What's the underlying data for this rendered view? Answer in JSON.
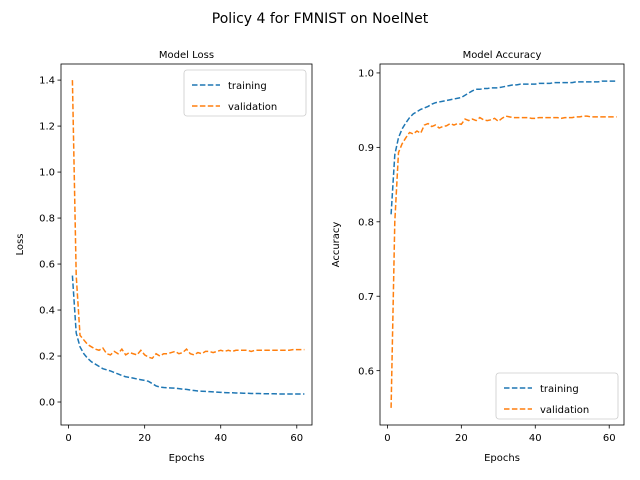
{
  "figure": {
    "suptitle": "Policy 4 for FMNIST on NoelNet"
  },
  "colors": {
    "training": "#1f77b4",
    "validation": "#ff7f0e",
    "axis": "#000000",
    "background": "#ffffff"
  },
  "chart_data": [
    {
      "type": "line",
      "title": "Model Loss",
      "xlabel": "Epochs",
      "ylabel": "Loss",
      "xlim": [
        -2,
        64
      ],
      "ylim": [
        -0.1,
        1.47
      ],
      "xticks": [
        0,
        20,
        40,
        60
      ],
      "xtick_labels": [
        "0",
        "20",
        "40",
        "60"
      ],
      "yticks": [
        0.0,
        0.2,
        0.4,
        0.6,
        0.8,
        1.0,
        1.2,
        1.4
      ],
      "ytick_labels": [
        "0.0",
        "0.2",
        "0.4",
        "0.6",
        "0.8",
        "1.0",
        "1.2",
        "1.4"
      ],
      "grid": false,
      "legend_position": "top-right",
      "series": [
        {
          "name": "training",
          "line_style": "dashed",
          "x": [
            1,
            2,
            3,
            4,
            5,
            6,
            7,
            8,
            9,
            10,
            11,
            12,
            13,
            14,
            15,
            16,
            17,
            18,
            19,
            20,
            21,
            22,
            23,
            24,
            25,
            26,
            27,
            28,
            29,
            30,
            31,
            32,
            33,
            34,
            35,
            36,
            37,
            38,
            39,
            40,
            41,
            42,
            43,
            44,
            45,
            46,
            47,
            48,
            49,
            50,
            51,
            52,
            53,
            54,
            55,
            56,
            57,
            58,
            59,
            60,
            61,
            62
          ],
          "y": [
            0.55,
            0.3,
            0.24,
            0.21,
            0.19,
            0.175,
            0.165,
            0.155,
            0.145,
            0.14,
            0.135,
            0.128,
            0.122,
            0.115,
            0.11,
            0.107,
            0.104,
            0.1,
            0.097,
            0.094,
            0.09,
            0.08,
            0.07,
            0.065,
            0.063,
            0.062,
            0.061,
            0.06,
            0.058,
            0.056,
            0.055,
            0.052,
            0.05,
            0.048,
            0.047,
            0.046,
            0.045,
            0.044,
            0.043,
            0.042,
            0.041,
            0.04,
            0.04,
            0.039,
            0.039,
            0.038,
            0.038,
            0.037,
            0.037,
            0.037,
            0.036,
            0.036,
            0.036,
            0.036,
            0.035,
            0.035,
            0.035,
            0.035,
            0.035,
            0.035,
            0.035,
            0.035
          ]
        },
        {
          "name": "validation",
          "line_style": "dashed",
          "x": [
            1,
            2,
            3,
            4,
            5,
            6,
            7,
            8,
            9,
            10,
            11,
            12,
            13,
            14,
            15,
            16,
            17,
            18,
            19,
            20,
            21,
            22,
            23,
            24,
            25,
            26,
            27,
            28,
            29,
            30,
            31,
            32,
            33,
            34,
            35,
            36,
            37,
            38,
            39,
            40,
            41,
            42,
            43,
            44,
            45,
            46,
            47,
            48,
            49,
            50,
            51,
            52,
            53,
            54,
            55,
            56,
            57,
            58,
            59,
            60,
            61,
            62
          ],
          "y": [
            1.4,
            0.55,
            0.29,
            0.27,
            0.25,
            0.24,
            0.23,
            0.225,
            0.235,
            0.21,
            0.205,
            0.22,
            0.21,
            0.23,
            0.205,
            0.215,
            0.21,
            0.205,
            0.225,
            0.205,
            0.195,
            0.19,
            0.21,
            0.2,
            0.21,
            0.21,
            0.215,
            0.22,
            0.21,
            0.215,
            0.23,
            0.21,
            0.205,
            0.215,
            0.21,
            0.22,
            0.22,
            0.215,
            0.22,
            0.225,
            0.22,
            0.225,
            0.22,
            0.225,
            0.225,
            0.225,
            0.225,
            0.22,
            0.225,
            0.225,
            0.225,
            0.225,
            0.225,
            0.225,
            0.225,
            0.225,
            0.225,
            0.225,
            0.228,
            0.228,
            0.228,
            0.228
          ]
        }
      ]
    },
    {
      "type": "line",
      "title": "Model Accuracy",
      "xlabel": "Epochs",
      "ylabel": "Accuracy",
      "xlim": [
        -2,
        64
      ],
      "ylim": [
        0.527,
        1.012
      ],
      "xticks": [
        0,
        20,
        40,
        60
      ],
      "xtick_labels": [
        "0",
        "20",
        "40",
        "60"
      ],
      "yticks": [
        0.6,
        0.7,
        0.8,
        0.9,
        1.0
      ],
      "ytick_labels": [
        "0.6",
        "0.7",
        "0.8",
        "0.9",
        "1.0"
      ],
      "grid": false,
      "legend_position": "bottom-right",
      "series": [
        {
          "name": "training",
          "line_style": "dashed",
          "x": [
            1,
            2,
            3,
            4,
            5,
            6,
            7,
            8,
            9,
            10,
            11,
            12,
            13,
            14,
            15,
            16,
            17,
            18,
            19,
            20,
            21,
            22,
            23,
            24,
            25,
            26,
            27,
            28,
            29,
            30,
            31,
            32,
            33,
            34,
            35,
            36,
            37,
            38,
            39,
            40,
            41,
            42,
            43,
            44,
            45,
            46,
            47,
            48,
            49,
            50,
            51,
            52,
            53,
            54,
            55,
            56,
            57,
            58,
            59,
            60,
            61,
            62
          ],
          "y": [
            0.81,
            0.89,
            0.913,
            0.925,
            0.933,
            0.94,
            0.945,
            0.948,
            0.951,
            0.953,
            0.955,
            0.958,
            0.96,
            0.961,
            0.962,
            0.963,
            0.964,
            0.965,
            0.966,
            0.967,
            0.97,
            0.973,
            0.976,
            0.978,
            0.978,
            0.979,
            0.979,
            0.98,
            0.98,
            0.98,
            0.981,
            0.982,
            0.983,
            0.984,
            0.984,
            0.985,
            0.985,
            0.985,
            0.985,
            0.985,
            0.986,
            0.986,
            0.986,
            0.986,
            0.987,
            0.987,
            0.987,
            0.987,
            0.987,
            0.987,
            0.988,
            0.988,
            0.988,
            0.988,
            0.988,
            0.988,
            0.988,
            0.989,
            0.989,
            0.989,
            0.989,
            0.989
          ]
        },
        {
          "name": "validation",
          "line_style": "dashed",
          "x": [
            1,
            2,
            3,
            4,
            5,
            6,
            7,
            8,
            9,
            10,
            11,
            12,
            13,
            14,
            15,
            16,
            17,
            18,
            19,
            20,
            21,
            22,
            23,
            24,
            25,
            26,
            27,
            28,
            29,
            30,
            31,
            32,
            33,
            34,
            35,
            36,
            37,
            38,
            39,
            40,
            41,
            42,
            43,
            44,
            45,
            46,
            47,
            48,
            49,
            50,
            51,
            52,
            53,
            54,
            55,
            56,
            57,
            58,
            59,
            60,
            61,
            62
          ],
          "y": [
            0.55,
            0.8,
            0.893,
            0.905,
            0.913,
            0.92,
            0.918,
            0.922,
            0.919,
            0.93,
            0.932,
            0.928,
            0.93,
            0.926,
            0.928,
            0.929,
            0.932,
            0.93,
            0.932,
            0.931,
            0.938,
            0.936,
            0.938,
            0.936,
            0.94,
            0.937,
            0.936,
            0.937,
            0.939,
            0.935,
            0.939,
            0.942,
            0.941,
            0.94,
            0.94,
            0.94,
            0.94,
            0.94,
            0.939,
            0.939,
            0.94,
            0.94,
            0.94,
            0.94,
            0.94,
            0.94,
            0.939,
            0.94,
            0.94,
            0.94,
            0.941,
            0.941,
            0.942,
            0.942,
            0.941,
            0.941,
            0.941,
            0.941,
            0.941,
            0.941,
            0.941,
            0.941
          ]
        }
      ]
    }
  ]
}
